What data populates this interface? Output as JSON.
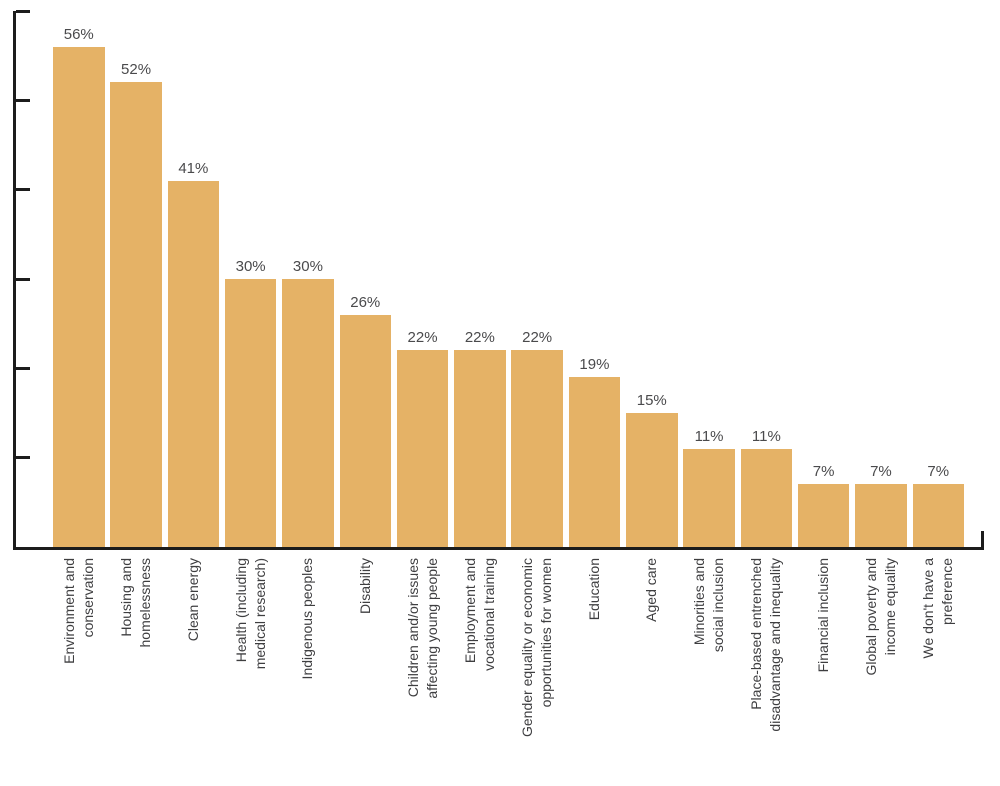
{
  "chart_data": {
    "type": "bar",
    "title": "",
    "xlabel": "",
    "ylabel": "",
    "categories": [
      "Environment and\nconservation",
      "Housing and\nhomelessness",
      "Clean energy",
      "Health (including\nmedical research)",
      "Indigenous peoples",
      "Disability",
      "Children and/or issues\naffecting young people",
      "Employment and\nvocational training",
      "Gender equality or economic\nopportunities for women",
      "Education",
      "Aged care",
      "Minorities and\nsocial inclusion",
      "Place-based entrenched\ndisadvantage and inequality",
      "Financial inclusion",
      "Global poverty and\nincome equality",
      "We don't have a\npreference"
    ],
    "values": [
      56,
      52,
      41,
      30,
      30,
      26,
      22,
      22,
      22,
      19,
      15,
      11,
      11,
      7,
      7,
      7
    ],
    "value_labels": [
      "56%",
      "52%",
      "41%",
      "30%",
      "30%",
      "26%",
      "22%",
      "22%",
      "22%",
      "19%",
      "15%",
      "11%",
      "11%",
      "7%",
      "7%",
      "7%"
    ],
    "ylim": [
      0,
      60
    ],
    "y_tick_step": 10,
    "y_tick_labels_shown": false,
    "grid": false,
    "legend": false,
    "colors": {
      "bar": "#E5B266",
      "axis": "#1C1C1C",
      "value_label": "#4A4A4C",
      "category_label": "#3E3E40",
      "background": "#FFFFFF"
    }
  }
}
